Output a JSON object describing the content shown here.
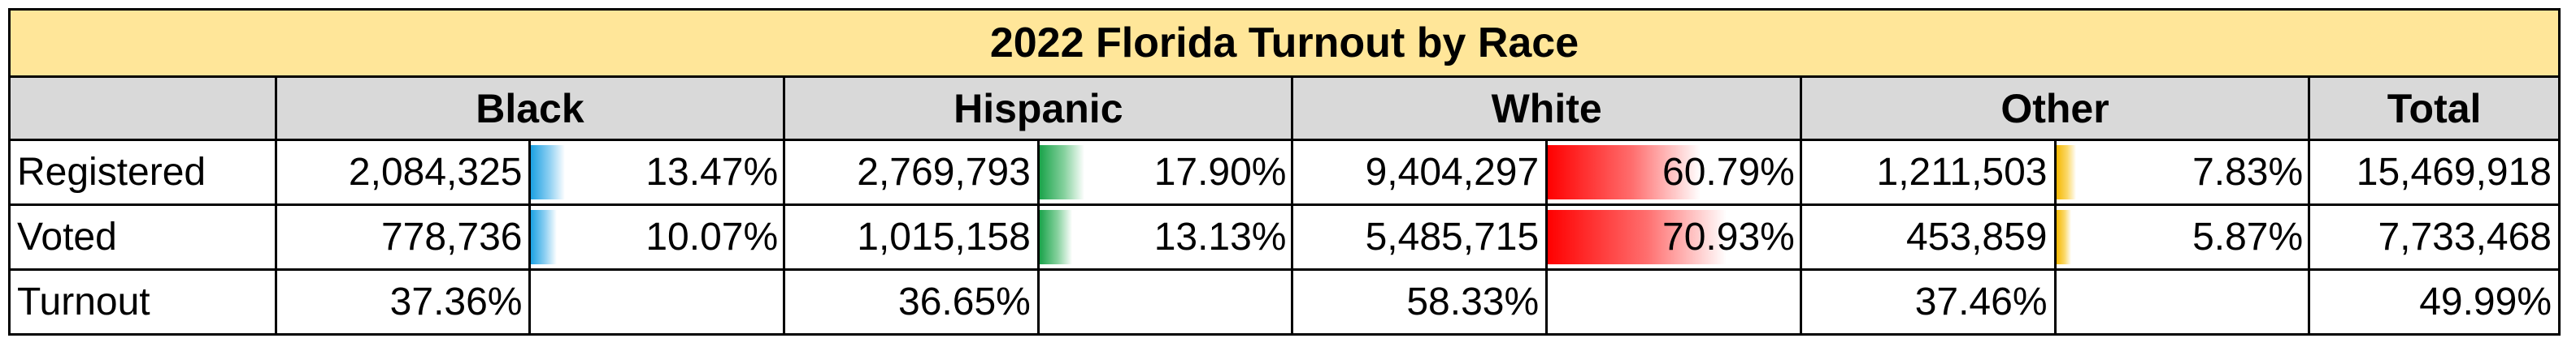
{
  "title": "2022 Florida Turnout by Race",
  "headers": {
    "black": "Black",
    "hispanic": "Hispanic",
    "white": "White",
    "other": "Other",
    "total": "Total"
  },
  "rows": {
    "registered": {
      "label": "Registered",
      "black": {
        "count": "2,084,325",
        "pct": "13.47%",
        "share": 13.47
      },
      "hispanic": {
        "count": "2,769,793",
        "pct": "17.90%",
        "share": 17.9
      },
      "white": {
        "count": "9,404,297",
        "pct": "60.79%",
        "share": 60.79
      },
      "other": {
        "count": "1,211,503",
        "pct": "7.83%",
        "share": 7.83
      },
      "total": "15,469,918"
    },
    "voted": {
      "label": "Voted",
      "black": {
        "count": "778,736",
        "pct": "10.07%",
        "share": 10.07
      },
      "hispanic": {
        "count": "1,015,158",
        "pct": "13.13%",
        "share": 13.13
      },
      "white": {
        "count": "5,485,715",
        "pct": "70.93%",
        "share": 70.93
      },
      "other": {
        "count": "453,859",
        "pct": "5.87%",
        "share": 5.87
      },
      "total": "7,733,468"
    },
    "turnout": {
      "label": "Turnout",
      "black": "37.36%",
      "hispanic": "36.65%",
      "white": "58.33%",
      "other": "37.46%",
      "total": "49.99%"
    }
  },
  "colors": {
    "title_bg": "#ffe699",
    "header_bg": "#d9d9d9",
    "black_bar": "#1ba1e2",
    "hispanic_bar": "#1aa34a",
    "white_bar": "#ff0000",
    "other_bar": "#f5b800"
  }
}
